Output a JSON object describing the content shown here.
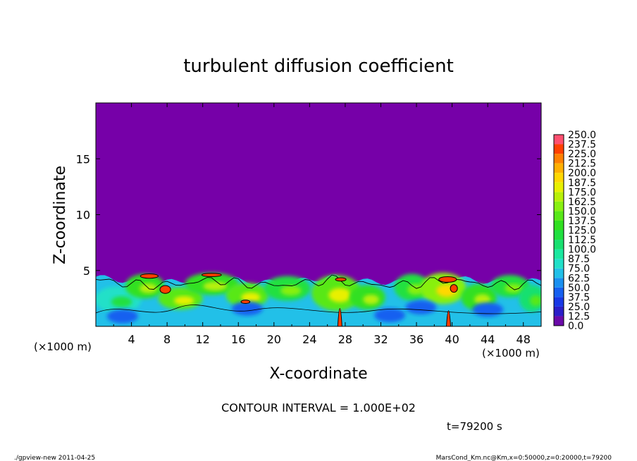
{
  "chart_data": {
    "type": "heatmap",
    "title": "turbulent diffusion coefficient",
    "xlabel": "X-coordinate",
    "ylabel": "Z-coordinate",
    "x_unit": "(×1000 m)",
    "y_unit": "(×1000 m)",
    "xlim": [
      0,
      50
    ],
    "ylim": [
      0,
      20
    ],
    "xticks": [
      "4",
      "8",
      "12",
      "16",
      "20",
      "24",
      "28",
      "32",
      "36",
      "40",
      "44",
      "48"
    ],
    "yticks": [
      "5",
      "10",
      "15"
    ],
    "colorbar_levels": [
      "0.0",
      "12.5",
      "25.0",
      "37.5",
      "50.0",
      "62.5",
      "75.0",
      "87.5",
      "100.0",
      "112.5",
      "125.0",
      "137.5",
      "150.0",
      "162.5",
      "175.0",
      "187.5",
      "200.0",
      "212.5",
      "225.0",
      "237.5",
      "250.0"
    ],
    "colorbar_colors": [
      "#6a0aa8",
      "#2b1ec8",
      "#1838e6",
      "#1660f0",
      "#1a90f0",
      "#22c0e8",
      "#20e0c8",
      "#1ae8a0",
      "#18e070",
      "#20e040",
      "#30e020",
      "#58e818",
      "#88f010",
      "#b8f008",
      "#e8f000",
      "#ffd800",
      "#ffb000",
      "#ff8000",
      "#ff4000",
      "#ff5070",
      "#ff9090"
    ],
    "background_color": "#7600a8",
    "boundary_layer_top_km": 4.8,
    "contour_interval_text": "CONTOUR INTERVAL = 1.000E+02",
    "time_text": "t=79200 s"
  },
  "footer": {
    "left": "./gpview-new   2011-04-25",
    "right": "MarsCond_Km.nc@Km,x=0:50000,z=0:20000,t=79200"
  }
}
